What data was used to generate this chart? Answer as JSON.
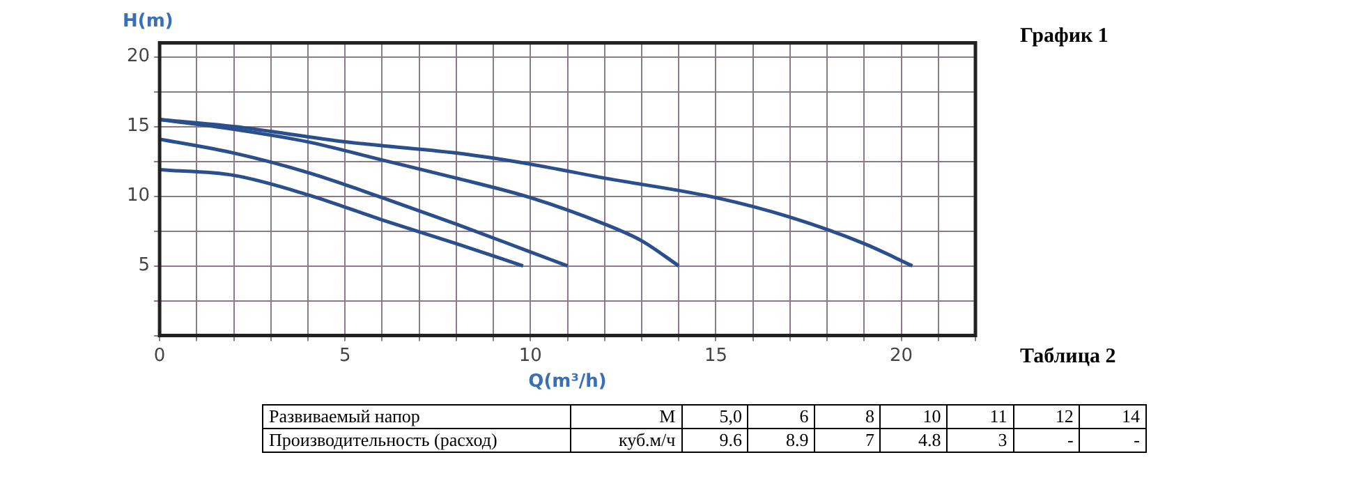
{
  "chart_data": {
    "type": "line",
    "title": "График 1",
    "xlabel": "Q(m³/h)",
    "ylabel": "H(m)",
    "annotations": [
      "Таблица 2",
      "Развиваемый напор",
      "М",
      "5,0",
      "6",
      "8",
      "10",
      "11",
      "12",
      "14",
      "Производительность (расход)",
      "куб.м/ч",
      "9.6",
      "8.9",
      "7",
      "4.8",
      "3",
      "-",
      "-"
    ],
    "series": [
      {
        "color": "#2b4f8c",
        "x": [
          0,
          2,
          4,
          6,
          8,
          9.8
        ],
        "values": [
          11.9,
          11.5,
          10.1,
          8.3,
          6.6,
          5.0
        ]
      },
      {
        "color": "#2b4f8c",
        "x": [
          0,
          2,
          4,
          6,
          8,
          10,
          11
        ],
        "values": [
          14.1,
          13.1,
          11.7,
          9.9,
          8.0,
          6.0,
          5.0
        ]
      },
      {
        "color": "#2b4f8c",
        "x": [
          0,
          2,
          4,
          6,
          8,
          10,
          12,
          13,
          14
        ],
        "values": [
          15.5,
          14.8,
          13.9,
          12.6,
          11.3,
          9.9,
          8.0,
          6.8,
          5.0
        ]
      },
      {
        "color": "#2b4f8c",
        "x": [
          0,
          2,
          5,
          8,
          10,
          12,
          15,
          17,
          19,
          20.3
        ],
        "values": [
          15.5,
          15.0,
          13.9,
          13.1,
          12.3,
          11.3,
          9.9,
          8.5,
          6.6,
          5.0
        ]
      }
    ],
    "xlim": [
      0,
      22
    ],
    "xticks": [
      0,
      {
        "value": 1,
        "label": null
      },
      {
        "value": 2,
        "label": null
      },
      {
        "value": 3,
        "label": null
      },
      {
        "value": 4,
        "label": null
      },
      5,
      {
        "value": 6,
        "label": null
      },
      {
        "value": 7,
        "label": null
      },
      {
        "value": 8,
        "label": null
      },
      {
        "value": 9,
        "label": null
      },
      10,
      {
        "value": 11,
        "label": null
      },
      {
        "value": 12,
        "label": null
      },
      {
        "value": 13,
        "label": null
      },
      {
        "value": 14,
        "label": null
      },
      15,
      {
        "value": 16,
        "label": null
      },
      {
        "value": 17,
        "label": null
      },
      {
        "value": 18,
        "label": null
      },
      {
        "value": 19,
        "label": null
      },
      20,
      {
        "value": 21,
        "label": null
      },
      {
        "value": 22,
        "label": null
      }
    ],
    "ylim": [
      0,
      21
    ],
    "yticks": [
      {
        "value": 0,
        "label": null
      },
      {
        "value": 2.5,
        "label": null
      },
      5,
      {
        "value": 7.5,
        "label": null
      },
      10,
      {
        "value": 12.5,
        "label": null
      },
      15,
      {
        "value": 17.5,
        "label": null
      },
      20
    ],
    "grid": true,
    "marker": "none",
    "line_style": "solid",
    "legend": false
  }
}
